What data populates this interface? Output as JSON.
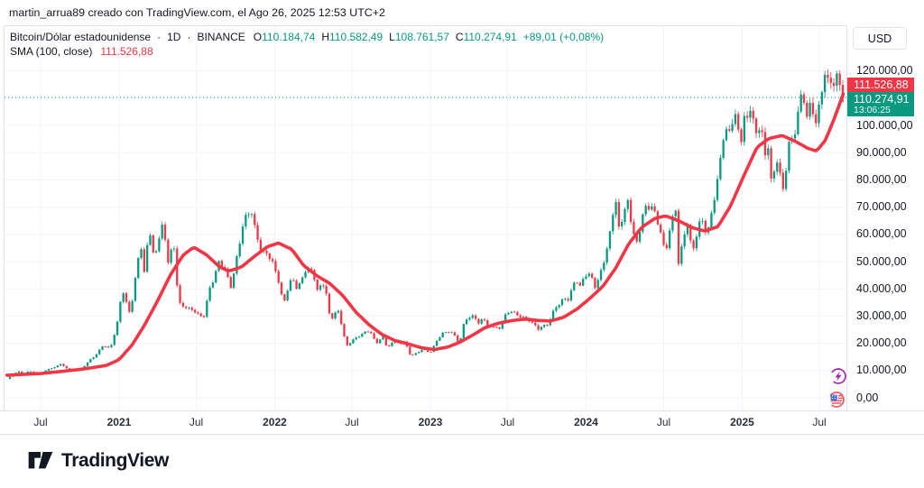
{
  "attribution": "martin_arrua89 creado con TradingView.com, el Ago 26, 2025 12:53 UTC+2",
  "legend": {
    "symbol_title": "Bitcoin/Dólar estadounidense",
    "separator": "·",
    "interval": "1D",
    "exchange": "BINANCE",
    "ohlc": [
      {
        "label": "O",
        "value": "110.184,74"
      },
      {
        "label": "H",
        "value": "110.582,49"
      },
      {
        "label": "L",
        "value": "108.761,57"
      },
      {
        "label": "C",
        "value": "110.274,91"
      }
    ],
    "change": "+89,01 (+0,08%)",
    "sma_label": "SMA (100, close)",
    "sma_value": "111.526,88"
  },
  "price_scale": {
    "currency_button": "USD",
    "ticks": [
      {
        "label": "120.000,00",
        "value": 120000
      },
      {
        "label": "100.000,00",
        "value": 100000
      },
      {
        "label": "90.000,00",
        "value": 90000
      },
      {
        "label": "80.000,00",
        "value": 80000
      },
      {
        "label": "70.000,00",
        "value": 70000
      },
      {
        "label": "60.000,00",
        "value": 60000
      },
      {
        "label": "50.000,00",
        "value": 50000
      },
      {
        "label": "40.000,00",
        "value": 40000
      },
      {
        "label": "30.000,00",
        "value": 30000
      },
      {
        "label": "20.000,00",
        "value": 20000
      },
      {
        "label": "10.000,00",
        "value": 10000
      },
      {
        "label": "0,00",
        "value": 0
      }
    ],
    "sma_badge": {
      "label": "111.526,88",
      "value": 111527
    },
    "price_badge": {
      "label": "110.274,91",
      "countdown": "13:06:25",
      "value": 110274.91
    }
  },
  "time_scale": {
    "ticks": [
      {
        "label": "Jul",
        "date": "2020-07-01",
        "major": false
      },
      {
        "label": "2021",
        "date": "2021-01-01",
        "major": true
      },
      {
        "label": "Jul",
        "date": "2021-07-01",
        "major": false
      },
      {
        "label": "2022",
        "date": "2022-01-01",
        "major": true
      },
      {
        "label": "Jul",
        "date": "2022-07-01",
        "major": false
      },
      {
        "label": "2023",
        "date": "2023-01-01",
        "major": true
      },
      {
        "label": "Jul",
        "date": "2023-07-01",
        "major": false
      },
      {
        "label": "2024",
        "date": "2024-01-01",
        "major": true
      },
      {
        "label": "Jul",
        "date": "2024-07-01",
        "major": false
      },
      {
        "label": "2025",
        "date": "2025-01-01",
        "major": true
      },
      {
        "label": "Jul",
        "date": "2025-07-01",
        "major": false
      }
    ]
  },
  "footer": {
    "brand": "TradingView"
  },
  "colors": {
    "up": "#089981",
    "down": "#f23645",
    "sma": "#f23645",
    "grid": "#f0f3fa",
    "border": "#e0e3eb",
    "text": "#131722",
    "current_price_line": "#089981",
    "event_purple": "#9c27b0",
    "event_red": "#f7525f",
    "event_blue": "#2962ff"
  },
  "chart_data": {
    "type": "candlestick",
    "title": "Bitcoin/Dólar estadounidense",
    "interval": "1D",
    "exchange": "BINANCE",
    "x_range": [
      "2020-04-13",
      "2025-08-26"
    ],
    "x_tick_labels": [
      "Jul",
      "2021",
      "Jul",
      "2022",
      "Jul",
      "2023",
      "Jul",
      "2024",
      "Jul",
      "2025",
      "Jul"
    ],
    "ylim": [
      0,
      137000
    ],
    "y_ticks": [
      0,
      10000,
      20000,
      30000,
      40000,
      50000,
      60000,
      70000,
      80000,
      90000,
      100000,
      110000,
      120000
    ],
    "grid": true,
    "last": {
      "open": 110184.74,
      "high": 110582.49,
      "low": 108761.57,
      "close": 110274.91,
      "change": 89.01,
      "change_pct": 0.08
    },
    "series": [
      {
        "name": "BTC/USD close",
        "type": "candles",
        "points": [
          [
            "2020-04-13",
            6900
          ],
          [
            "2020-04-29",
            8750
          ],
          [
            "2020-05-09",
            9550
          ],
          [
            "2020-05-25",
            8750
          ],
          [
            "2020-06-02",
            9650
          ],
          [
            "2020-07-03",
            9100
          ],
          [
            "2020-07-27",
            10950
          ],
          [
            "2020-08-17",
            12250
          ],
          [
            "2020-09-08",
            10150
          ],
          [
            "2020-10-03",
            10550
          ],
          [
            "2020-11-06",
            15550
          ],
          [
            "2020-11-24",
            19150
          ],
          [
            "2020-12-11",
            18050
          ],
          [
            "2020-12-31",
            29000
          ],
          [
            "2021-01-08",
            40600
          ],
          [
            "2021-01-27",
            30400
          ],
          [
            "2021-02-21",
            57500
          ],
          [
            "2021-02-28",
            45150
          ],
          [
            "2021-03-13",
            61200
          ],
          [
            "2021-03-25",
            51350
          ],
          [
            "2021-04-14",
            64500
          ],
          [
            "2021-04-25",
            49100
          ],
          [
            "2021-05-08",
            58850
          ],
          [
            "2021-05-19",
            36700
          ],
          [
            "2021-05-23",
            34700
          ],
          [
            "2021-06-26",
            31600
          ],
          [
            "2021-07-20",
            29800
          ],
          [
            "2021-08-01",
            39900
          ],
          [
            "2021-08-23",
            49500
          ],
          [
            "2021-09-07",
            46850
          ],
          [
            "2021-09-21",
            40700
          ],
          [
            "2021-10-05",
            51500
          ],
          [
            "2021-10-20",
            66000
          ],
          [
            "2021-11-08",
            67550
          ],
          [
            "2021-11-28",
            54750
          ],
          [
            "2021-12-03",
            53600
          ],
          [
            "2021-12-27",
            50700
          ],
          [
            "2022-01-10",
            41850
          ],
          [
            "2022-01-22",
            35050
          ],
          [
            "2022-02-10",
            44550
          ],
          [
            "2022-02-24",
            38300
          ],
          [
            "2022-03-02",
            44400
          ],
          [
            "2022-03-29",
            47450
          ],
          [
            "2022-04-11",
            39500
          ],
          [
            "2022-04-21",
            42250
          ],
          [
            "2022-05-01",
            38500
          ],
          [
            "2022-05-12",
            29000
          ],
          [
            "2022-05-31",
            31800
          ],
          [
            "2022-06-13",
            22500
          ],
          [
            "2022-06-18",
            19000
          ],
          [
            "2022-07-08",
            21600
          ],
          [
            "2022-07-20",
            23250
          ],
          [
            "2022-08-13",
            24450
          ],
          [
            "2022-08-28",
            19950
          ],
          [
            "2022-09-12",
            22400
          ],
          [
            "2022-09-21",
            18500
          ],
          [
            "2022-10-04",
            20350
          ],
          [
            "2022-10-25",
            20100
          ],
          [
            "2022-11-05",
            21300
          ],
          [
            "2022-11-09",
            15900
          ],
          [
            "2022-11-21",
            15800
          ],
          [
            "2022-12-14",
            17800
          ],
          [
            "2022-12-30",
            16550
          ],
          [
            "2023-01-13",
            19950
          ],
          [
            "2023-01-29",
            23750
          ],
          [
            "2023-02-16",
            24600
          ],
          [
            "2023-03-10",
            20200
          ],
          [
            "2023-03-22",
            28100
          ],
          [
            "2023-04-13",
            30400
          ],
          [
            "2023-04-24",
            27500
          ],
          [
            "2023-05-06",
            28900
          ],
          [
            "2023-05-12",
            26800
          ],
          [
            "2023-06-15",
            25100
          ],
          [
            "2023-06-23",
            30700
          ],
          [
            "2023-07-13",
            31450
          ],
          [
            "2023-08-16",
            28700
          ],
          [
            "2023-08-29",
            27700
          ],
          [
            "2023-09-11",
            25150
          ],
          [
            "2023-10-01",
            27000
          ],
          [
            "2023-10-23",
            33100
          ],
          [
            "2023-11-09",
            36700
          ],
          [
            "2023-11-21",
            35800
          ],
          [
            "2023-12-08",
            44200
          ],
          [
            "2023-12-18",
            41000
          ],
          [
            "2024-01-02",
            45000
          ],
          [
            "2024-01-11",
            46300
          ],
          [
            "2024-01-23",
            39900
          ],
          [
            "2024-02-12",
            50000
          ],
          [
            "2024-02-28",
            62500
          ],
          [
            "2024-03-13",
            73100
          ],
          [
            "2024-03-19",
            61900
          ],
          [
            "2024-04-08",
            72250
          ],
          [
            "2024-04-18",
            61300
          ],
          [
            "2024-05-01",
            57500
          ],
          [
            "2024-05-21",
            71400
          ],
          [
            "2024-06-07",
            69300
          ],
          [
            "2024-06-24",
            60300
          ],
          [
            "2024-07-05",
            54000
          ],
          [
            "2024-07-29",
            69900
          ],
          [
            "2024-08-05",
            49800
          ],
          [
            "2024-08-25",
            64300
          ],
          [
            "2024-09-06",
            53950
          ],
          [
            "2024-09-27",
            65800
          ],
          [
            "2024-10-10",
            60300
          ],
          [
            "2024-10-29",
            72700
          ],
          [
            "2024-11-11",
            88700
          ],
          [
            "2024-11-22",
            99000
          ],
          [
            "2024-12-05",
            96600
          ],
          [
            "2024-12-17",
            106100
          ],
          [
            "2024-12-30",
            92650
          ],
          [
            "2025-01-06",
            102100
          ],
          [
            "2025-01-21",
            106150
          ],
          [
            "2025-02-03",
            97700
          ],
          [
            "2025-02-21",
            96200
          ],
          [
            "2025-02-28",
            84350
          ],
          [
            "2025-03-02",
            94250
          ],
          [
            "2025-03-10",
            78550
          ],
          [
            "2025-03-24",
            87500
          ],
          [
            "2025-04-08",
            76300
          ],
          [
            "2025-04-22",
            93400
          ],
          [
            "2025-05-02",
            96900
          ],
          [
            "2025-05-22",
            111700
          ],
          [
            "2025-06-05",
            101600
          ],
          [
            "2025-06-10",
            110250
          ],
          [
            "2025-06-22",
            98900
          ],
          [
            "2025-07-03",
            109600
          ],
          [
            "2025-07-14",
            119950
          ],
          [
            "2025-07-25",
            115100
          ],
          [
            "2025-08-02",
            112550
          ],
          [
            "2025-08-14",
            123300
          ],
          [
            "2025-08-19",
            112870
          ],
          [
            "2025-08-26",
            110275
          ]
        ]
      },
      {
        "name": "SMA (100, close)",
        "type": "line",
        "value_now": 111526.88,
        "points": [
          [
            "2020-04-13",
            8300
          ],
          [
            "2020-07-01",
            8900
          ],
          [
            "2020-10-01",
            10400
          ],
          [
            "2020-12-01",
            11800
          ],
          [
            "2021-01-01",
            14000
          ],
          [
            "2021-02-01",
            19500
          ],
          [
            "2021-03-01",
            26500
          ],
          [
            "2021-04-01",
            35500
          ],
          [
            "2021-05-01",
            45000
          ],
          [
            "2021-06-01",
            52500
          ],
          [
            "2021-06-25",
            55300
          ],
          [
            "2021-07-25",
            52500
          ],
          [
            "2021-08-25",
            48000
          ],
          [
            "2021-09-15",
            46500
          ],
          [
            "2021-10-15",
            48000
          ],
          [
            "2021-11-15",
            52000
          ],
          [
            "2021-12-15",
            55500
          ],
          [
            "2022-01-10",
            56800
          ],
          [
            "2022-02-10",
            54500
          ],
          [
            "2022-03-10",
            48500
          ],
          [
            "2022-04-10",
            44800
          ],
          [
            "2022-05-10",
            42000
          ],
          [
            "2022-06-10",
            37500
          ],
          [
            "2022-07-10",
            31500
          ],
          [
            "2022-08-10",
            26800
          ],
          [
            "2022-09-10",
            23200
          ],
          [
            "2022-10-10",
            21000
          ],
          [
            "2022-11-10",
            19800
          ],
          [
            "2022-12-10",
            18400
          ],
          [
            "2023-01-10",
            17700
          ],
          [
            "2023-02-10",
            18600
          ],
          [
            "2023-03-10",
            20300
          ],
          [
            "2023-04-10",
            23000
          ],
          [
            "2023-05-10",
            25800
          ],
          [
            "2023-06-10",
            27400
          ],
          [
            "2023-07-10",
            28300
          ],
          [
            "2023-08-10",
            28900
          ],
          [
            "2023-09-10",
            28400
          ],
          [
            "2023-10-10",
            28200
          ],
          [
            "2023-11-10",
            29600
          ],
          [
            "2023-12-10",
            32500
          ],
          [
            "2024-01-10",
            36500
          ],
          [
            "2024-02-10",
            41000
          ],
          [
            "2024-03-10",
            47500
          ],
          [
            "2024-04-10",
            56500
          ],
          [
            "2024-05-10",
            62500
          ],
          [
            "2024-06-10",
            65800
          ],
          [
            "2024-07-05",
            66800
          ],
          [
            "2024-08-05",
            65000
          ],
          [
            "2024-09-05",
            62500
          ],
          [
            "2024-10-05",
            61200
          ],
          [
            "2024-11-05",
            62800
          ],
          [
            "2024-12-05",
            70500
          ],
          [
            "2025-01-05",
            81500
          ],
          [
            "2025-02-05",
            92000
          ],
          [
            "2025-03-05",
            95200
          ],
          [
            "2025-04-05",
            96300
          ],
          [
            "2025-05-05",
            94200
          ],
          [
            "2025-06-05",
            91500
          ],
          [
            "2025-06-25",
            90600
          ],
          [
            "2025-07-15",
            94500
          ],
          [
            "2025-08-05",
            102500
          ],
          [
            "2025-08-26",
            111527
          ]
        ]
      }
    ]
  }
}
